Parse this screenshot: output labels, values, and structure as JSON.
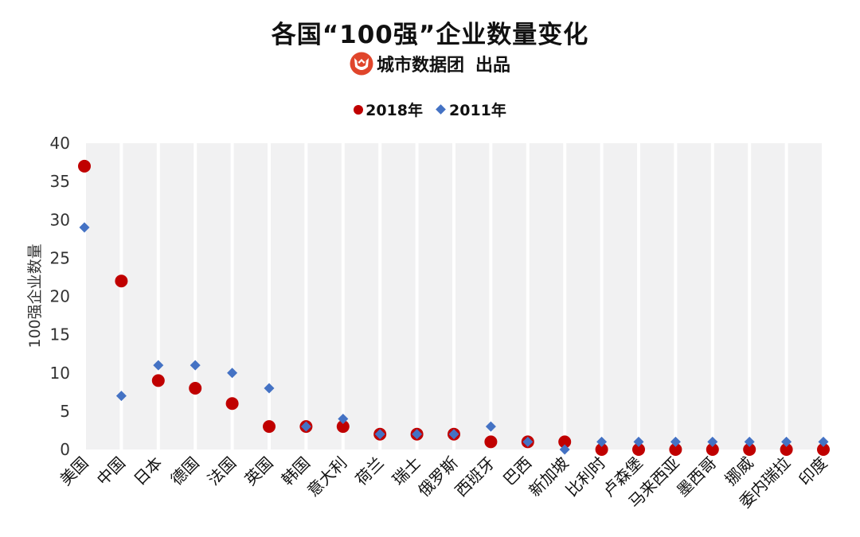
{
  "header": {
    "title": "各国“100强”企业数量变化",
    "brand": "城市数据团",
    "brand_suffix": "出品",
    "logo_icon": "cat-face-logo-icon"
  },
  "colors": {
    "series_2018": "#C00000",
    "series_2011": "#4472C4",
    "plot_bg": "#F1F1F2",
    "logo": "#E0452B"
  },
  "chart_data": {
    "type": "scatter",
    "title": "各国“100强”企业数量变化",
    "xlabel": "",
    "ylabel": "100强企业数量",
    "ylim": [
      0,
      40
    ],
    "yticks": [
      "0",
      "5",
      "10",
      "15",
      "20",
      "25",
      "30",
      "35",
      "40"
    ],
    "grid": "vertical",
    "legend_position": "top-center",
    "categories": [
      "美国",
      "中国",
      "日本",
      "德国",
      "法国",
      "英国",
      "韩国",
      "意大利",
      "荷兰",
      "瑞士",
      "俄罗斯",
      "西班牙",
      "巴西",
      "新加坡",
      "比利时",
      "卢森堡",
      "马来西亚",
      "墨西哥",
      "挪威",
      "委内瑞拉",
      "印度"
    ],
    "series": [
      {
        "name": "2018年",
        "marker": "circle",
        "values": [
          37,
          22,
          9,
          8,
          6,
          3,
          3,
          3,
          2,
          2,
          2,
          1,
          1,
          1,
          0,
          0,
          0,
          0,
          0,
          0,
          0
        ]
      },
      {
        "name": "2011年",
        "marker": "diamond",
        "values": [
          29,
          7,
          11,
          11,
          10,
          8,
          3,
          4,
          2,
          2,
          2,
          3,
          1,
          0,
          1,
          1,
          1,
          1,
          1,
          1,
          1
        ]
      }
    ]
  }
}
